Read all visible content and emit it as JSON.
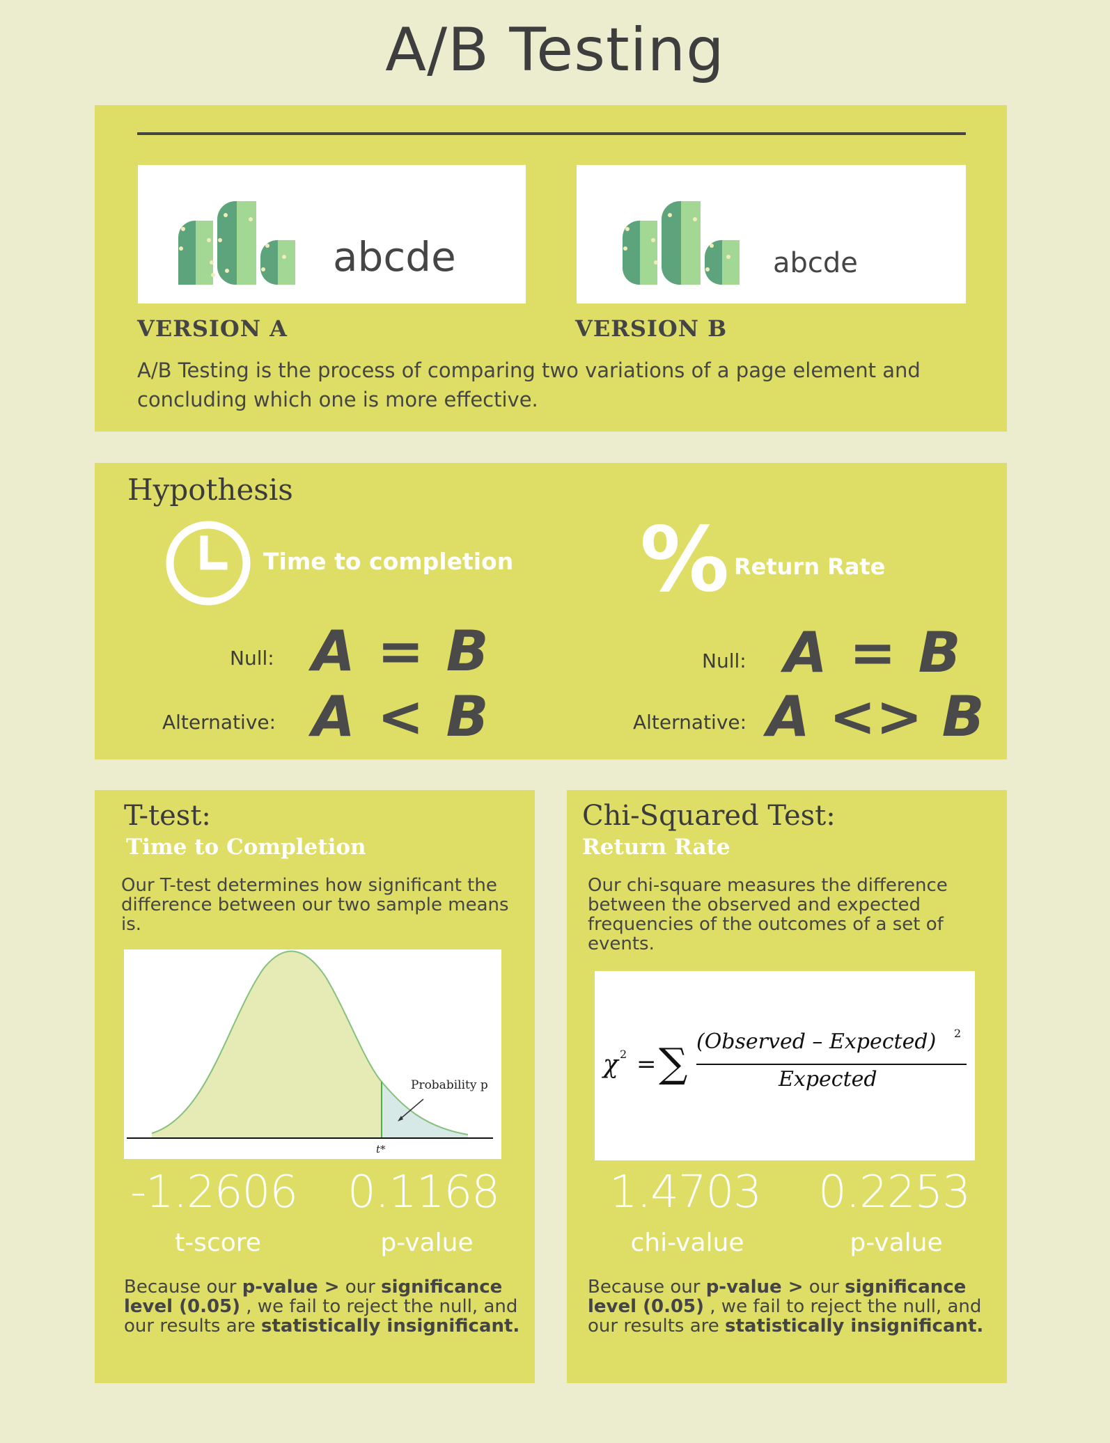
{
  "title": "A/B Testing",
  "intro": {
    "version_a": {
      "sample_text": "abcde",
      "label": "VERSION A"
    },
    "version_b": {
      "sample_text": "abcde",
      "label": "VERSION B"
    },
    "description": "A/B Testing is the process of comparing two variations of a page element and concluding which one is more effective.",
    "logo_icon": "cactus-bars-logo"
  },
  "hypothesis": {
    "title": "Hypothesis",
    "left": {
      "icon": "clock-icon",
      "metric": "Time to completion",
      "null_label": "Null:",
      "null_formula": "A = B",
      "alt_label": "Alternative:",
      "alt_formula": "A < B"
    },
    "right": {
      "icon": "percent-icon",
      "icon_glyph": "%",
      "metric": "Return Rate",
      "null_label": "Null:",
      "null_formula": "A = B",
      "alt_label": "Alternative:",
      "alt_formula": "A <> B"
    }
  },
  "ttest": {
    "title": "T-test:",
    "subtitle": "Time to Completion",
    "description": "Our T-test determines how significant the difference between our two sample means is.",
    "figure": {
      "annotation": "Probability p",
      "tick_label": "t*"
    },
    "score_value": "-1.2606",
    "score_label": "t-score",
    "p_value": "0.1168",
    "p_label": "p-value",
    "conclusion": {
      "t1": "Because our ",
      "b1": "p-value >",
      "t2": " our ",
      "b2": "significance level (0.05)",
      "t3": " , we fail to reject the null, and our results are ",
      "b3": "statistically insignificant."
    }
  },
  "chitest": {
    "title": "Chi-Squared Test:",
    "subtitle": "Return Rate",
    "description": "Our chi-square measures the difference between the observed and expected frequencies of the outcomes of a set of events.",
    "formula": {
      "lhs": "χ",
      "lhs_exp": "2",
      "equals": "=",
      "sigma": "∑",
      "numerator": "(Observed – Expected)",
      "numerator_exp": "2",
      "denominator": "Expected"
    },
    "score_value": "1.4703",
    "score_label": "chi-value",
    "p_value": "0.2253",
    "p_label": "p-value",
    "conclusion": {
      "t1": "Because our ",
      "b1": "p-value >",
      "t2": " our ",
      "b2": "significance level (0.05)",
      "t3": " , we fail to reject the null, and our results are ",
      "b3": "statistically insignificant."
    }
  },
  "colors": {
    "background": "#ececcf",
    "panel": "#dedd66",
    "dark_text": "#3d3d3d",
    "curve_fill": "#e6ebb6",
    "tail_fill": "#d6e9e6",
    "cactus_dark": "#5da47c",
    "cactus_light": "#a2d893"
  }
}
